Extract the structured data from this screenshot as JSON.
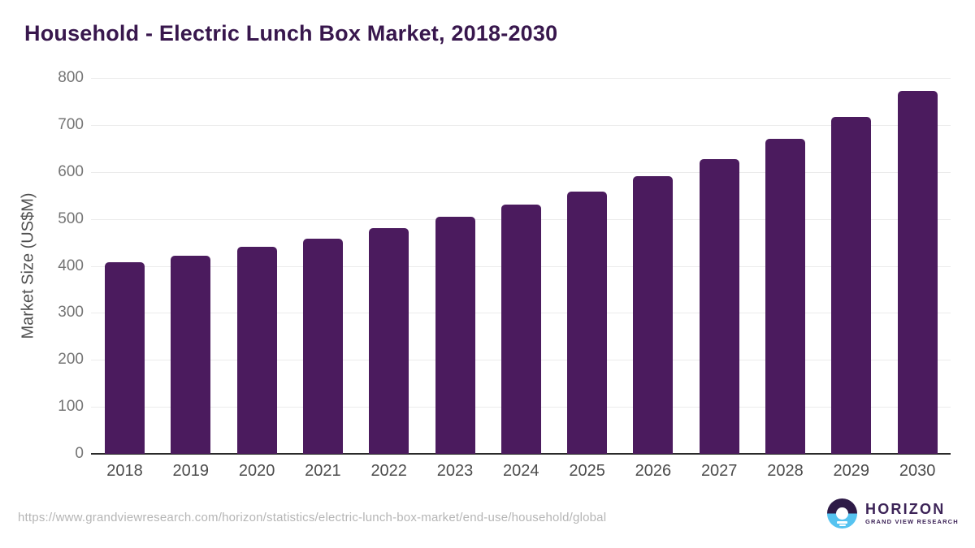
{
  "title": "Household - Electric Lunch Box Market, 2018-2030",
  "chart_data": {
    "type": "bar",
    "categories": [
      "2018",
      "2019",
      "2020",
      "2021",
      "2022",
      "2023",
      "2024",
      "2025",
      "2026",
      "2027",
      "2028",
      "2029",
      "2030"
    ],
    "values": [
      408,
      422,
      440,
      458,
      480,
      505,
      530,
      558,
      591,
      627,
      670,
      717,
      772
    ],
    "title": "Household - Electric Lunch Box Market, 2018-2030",
    "xlabel": "",
    "ylabel": "Market Size (US$M)",
    "ylim": [
      0,
      800
    ],
    "ytick_step": 100,
    "yticks": [
      0,
      100,
      200,
      300,
      400,
      500,
      600,
      700,
      800
    ],
    "grid": "horizontal",
    "legend": "none",
    "bar_color": "#4b1b5e"
  },
  "colors": {
    "title": "#38174d",
    "bar": "#4b1b5e",
    "gridline": "#ebebeb",
    "axis_line": "#2b2b2b",
    "tick_label": "#757575",
    "x_label": "#4c4c4c",
    "footer_url": "#b5b5b5",
    "logo_purple": "#2e1a47",
    "logo_blue": "#56c3f0",
    "logo_text": "#3c2357"
  },
  "footer": {
    "source_url": "https://www.grandviewresearch.com/horizon/statistics/electric-lunch-box-market/end-use/household/global",
    "logo": {
      "name": "HORIZON",
      "subtitle": "GRAND VIEW RESEARCH"
    }
  }
}
